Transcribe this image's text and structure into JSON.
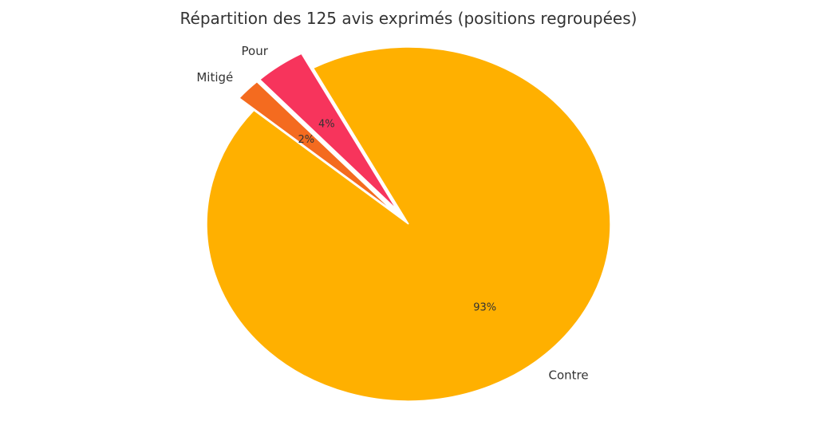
{
  "chart_data": {
    "type": "pie",
    "title": "Répartition des 125 avis exprimés (positions regroupées)",
    "slices": [
      {
        "label": "Contre",
        "value": 93,
        "pct_label": "93%",
        "color": "#ffb000",
        "exploded": false
      },
      {
        "label": "Pour",
        "value": 4,
        "pct_label": "4%",
        "color": "#f7345c",
        "exploded": true
      },
      {
        "label": "Mitigé",
        "value": 2,
        "pct_label": "2%",
        "color": "#f46b1f",
        "exploded": true
      }
    ],
    "start_angle_deg": 140,
    "direction": "counterclockwise",
    "legend": "none"
  }
}
